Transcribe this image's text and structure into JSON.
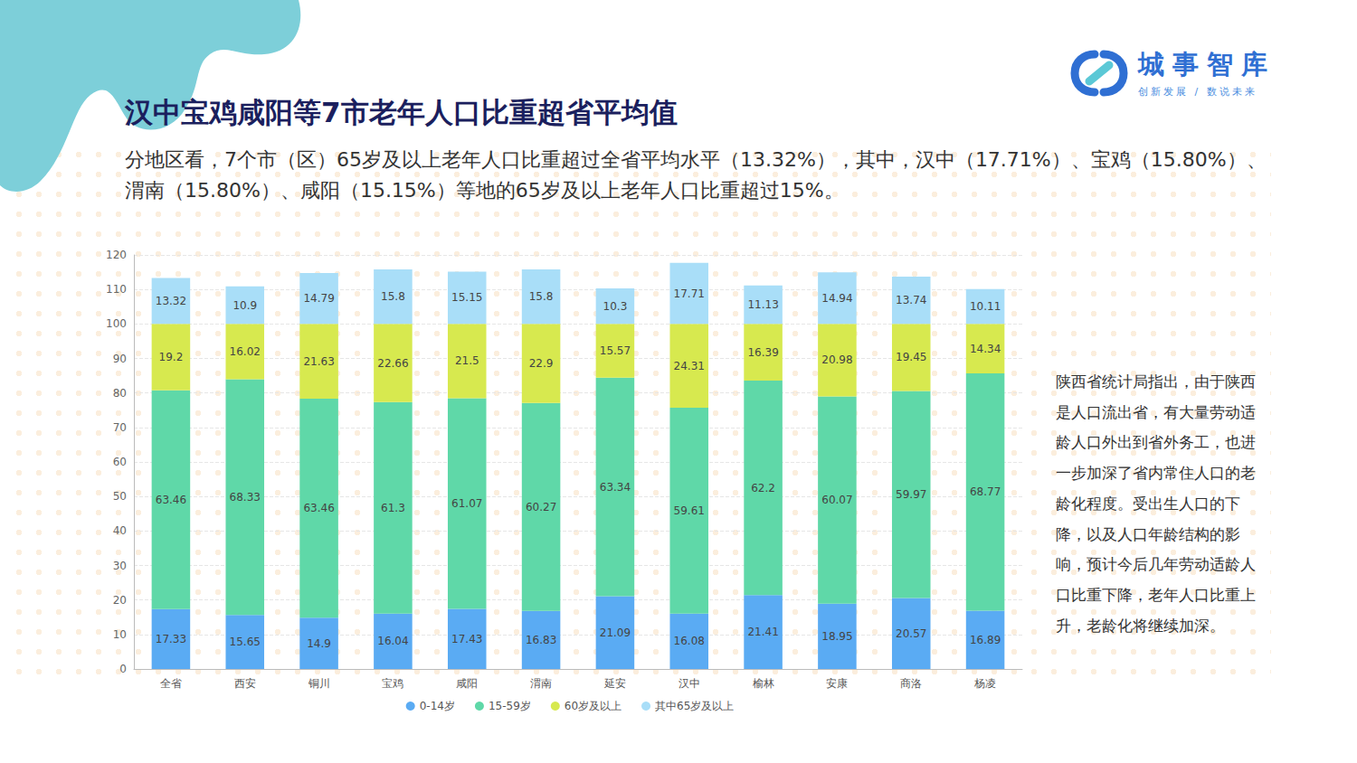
{
  "chart_data": {
    "type": "bar",
    "title": "汉中宝鸡咸阳等7市老年人口比重超省平均值",
    "subtitle": "分地区看，7个市（区）65岁及以上老年人口比重超过全省平均水平（13.32%），其中，汉中（17.71%）、宝鸡（15.80%）、渭南（15.80%）、咸阳（15.15%）等地的65岁及以上老年人口比重超过15%。",
    "annotations": [
      "陕西省统计局指出，由于陕西是人口流出省，有大量劳动适龄人口外出到省外务工，也进一步加深了省内常住人口的老龄化程度。受出生人口的下降，以及人口年龄结构的影响，预计今后几年劳动适龄人口比重下降，老年人口比重上升，老龄化将继续加深。"
    ],
    "categories": [
      "全省",
      "西安",
      "铜川",
      "宝鸡",
      "咸阳",
      "渭南",
      "延安",
      "汉中",
      "榆林",
      "安康",
      "商洛",
      "杨凌"
    ],
    "series": [
      {
        "name": "0-14岁",
        "color": "#5aabf3",
        "values": [
          17.33,
          15.65,
          14.9,
          16.04,
          17.43,
          16.83,
          21.09,
          16.08,
          21.41,
          18.95,
          20.57,
          16.89
        ]
      },
      {
        "name": "15-59岁",
        "color": "#5fd8a8",
        "values": [
          63.46,
          68.33,
          63.46,
          61.3,
          61.07,
          60.27,
          63.34,
          59.61,
          62.2,
          60.07,
          59.97,
          68.77
        ]
      },
      {
        "name": "60岁及以上",
        "color": "#d7e94f",
        "values": [
          19.2,
          16.02,
          21.63,
          22.66,
          21.5,
          22.9,
          15.57,
          24.31,
          16.39,
          20.98,
          19.45,
          14.34
        ]
      },
      {
        "name": "其中65岁及以上",
        "color": "#a9def8",
        "values": [
          13.32,
          10.9,
          14.79,
          15.8,
          15.15,
          15.8,
          10.3,
          17.71,
          11.13,
          14.94,
          13.74,
          10.11
        ]
      }
    ],
    "ylim": [
      0,
      120
    ],
    "yticks": [
      0,
      10,
      20,
      30,
      40,
      50,
      60,
      70,
      80,
      90,
      100,
      110,
      120
    ],
    "stacked": true,
    "data_labels": true,
    "grid": true,
    "legend": "bottom"
  },
  "logo": {
    "name": "城事智库",
    "tagline": "创新发展 / 数说未来"
  }
}
